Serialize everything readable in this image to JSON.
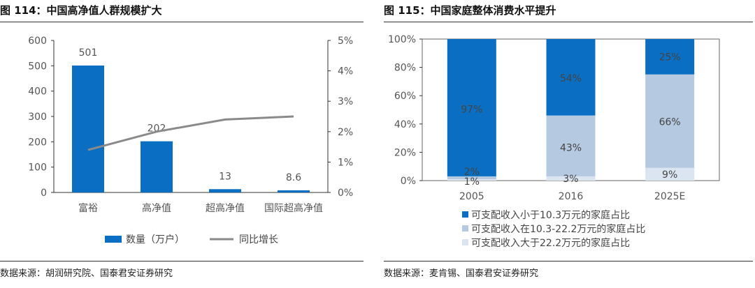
{
  "left": {
    "title": "图 114：中国高净值人群规模扩大",
    "source": "数据来源：胡润研究院、国泰君安证券研究"
  },
  "right": {
    "title": "图 115：中国家庭整体消费水平提升",
    "source": "数据来源：麦肯锡、国泰君安证券研究"
  },
  "colors": {
    "dark_blue": "#0a6fc2",
    "mid_blue": "#b5c9e0",
    "light_blue": "#dbe5f1",
    "line_gray": "#8a8a8a"
  },
  "chart_data": [
    {
      "type": "bar",
      "categories": [
        "富裕",
        "高净值",
        "超高净值",
        "国际超高净值"
      ],
      "series": [
        {
          "name": "数量（万户）",
          "type": "bar",
          "axis": "left",
          "values": [
            501,
            202,
            13,
            8.6
          ],
          "labels": [
            "501",
            "202",
            "13",
            "8.6"
          ]
        },
        {
          "name": "同比增长",
          "type": "line",
          "axis": "right",
          "values": [
            1.4,
            2.0,
            2.4,
            2.5
          ]
        }
      ],
      "y_left": {
        "ticks": [
          "0",
          "100",
          "200",
          "300",
          "400",
          "500",
          "600"
        ],
        "lim": [
          0,
          600
        ]
      },
      "y_right": {
        "ticks": [
          "0%",
          "1%",
          "2%",
          "3%",
          "4%",
          "5%"
        ],
        "lim": [
          0,
          5
        ]
      },
      "legend_position": "bottom"
    },
    {
      "type": "bar",
      "stacked": true,
      "categories": [
        "2005",
        "2016",
        "2025E"
      ],
      "series": [
        {
          "name": "可支配收入小于10.3万元的家庭占比",
          "values": [
            97,
            54,
            25
          ],
          "labels": [
            "97%",
            "54%",
            "25%"
          ]
        },
        {
          "name": "可支配收入在10.3-22.2万元的家庭占比",
          "values": [
            2,
            43,
            66
          ],
          "labels": [
            "2%",
            "43%",
            "66%"
          ]
        },
        {
          "name": "可支配收入大于22.2万元的家庭占比",
          "values": [
            1,
            3,
            9
          ],
          "labels": [
            "1%",
            "3%",
            "9%"
          ]
        }
      ],
      "y": {
        "ticks": [
          "0%",
          "20%",
          "40%",
          "60%",
          "80%",
          "100%"
        ],
        "lim": [
          0,
          100
        ]
      },
      "legend_position": "bottom"
    }
  ]
}
